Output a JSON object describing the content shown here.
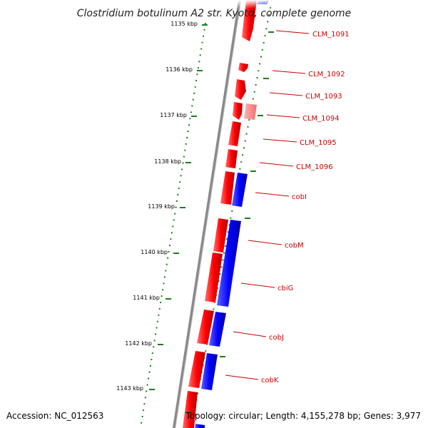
{
  "title": "Clostridium botulinum A2 str. Kyoto, complete genome",
  "footer": {
    "accession": "Accession: NC_012563",
    "topology": "Topology: circular; Length: 4,155,278 bp; Genes: 3,977"
  },
  "colors": {
    "forward": "#ff0000",
    "reverse": "#0000ff",
    "pseudo": "#ff8080",
    "ticks": "#1a7f1a",
    "backbone": "#8a8a8a",
    "label": "#cc0000"
  },
  "kbp_ticks": [
    "1135 kbp",
    "1136 kbp",
    "1137 kbp",
    "1138 kbp",
    "1139 kbp",
    "1140 kbp",
    "1141 kbp",
    "1142 kbp",
    "1143 kbp"
  ],
  "gene_labels": [
    "CLM_1091",
    "CLM_1092",
    "CLM_1093",
    "CLM_1094",
    "CLM_1095",
    "CLM_1096",
    "cobI",
    "cobM",
    "cbiG",
    "cobJ",
    "cobK"
  ]
}
